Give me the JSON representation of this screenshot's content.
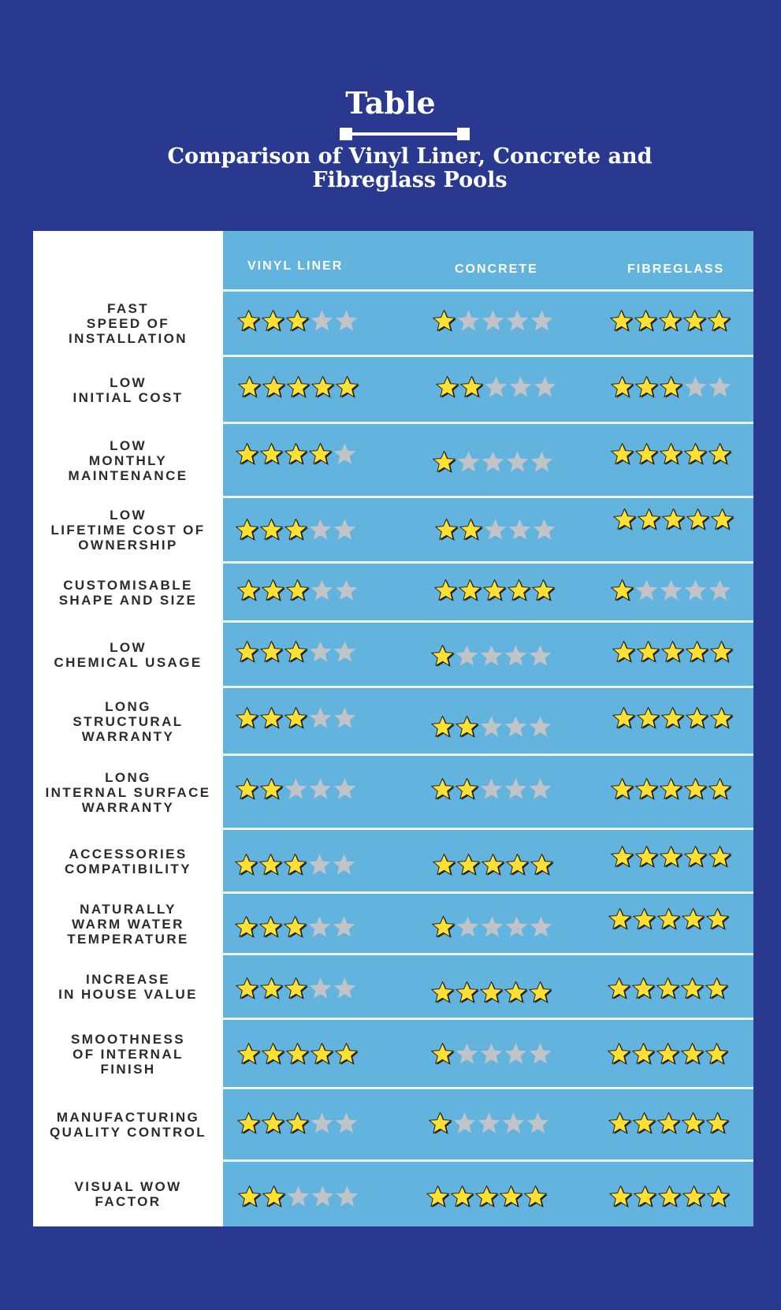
{
  "header": {
    "title": "Table",
    "subtitle_line1": "Comparison of Vinyl Liner, Concrete and",
    "subtitle_line2": "Fibreglass Pools"
  },
  "colors": {
    "background": "#2a3990",
    "table_fill": "#62b3dd",
    "label_fill": "#ffffff",
    "star_filled": "#ffe033",
    "star_empty": "#c0c4c9",
    "star_outline": "#222222"
  },
  "icons": {
    "filled": "star-filled-icon",
    "empty": "star-empty-icon",
    "divider": "bar-divider-icon"
  },
  "columns": [
    "VINYL LINER",
    "CONCRETE",
    "FIBREGLASS"
  ],
  "max_rating": 5,
  "rows": [
    {
      "lines": [
        "FAST",
        "SPEED OF",
        "INSTALLATION"
      ],
      "ratings": [
        3,
        1,
        5
      ]
    },
    {
      "lines": [
        "LOW",
        "INITIAL COST"
      ],
      "ratings": [
        5,
        2,
        3
      ]
    },
    {
      "lines": [
        "LOW",
        "MONTHLY",
        "MAINTENANCE"
      ],
      "ratings": [
        4,
        1,
        5
      ]
    },
    {
      "lines": [
        "LOW",
        "LIFETIME COST OF",
        "OWNERSHIP"
      ],
      "ratings": [
        3,
        2,
        5
      ]
    },
    {
      "lines": [
        "CUSTOMISABLE",
        "SHAPE AND SIZE"
      ],
      "ratings": [
        3,
        5,
        1
      ]
    },
    {
      "lines": [
        "LOW",
        "CHEMICAL USAGE"
      ],
      "ratings": [
        3,
        1,
        5
      ]
    },
    {
      "lines": [
        "LONG",
        "STRUCTURAL",
        "WARRANTY"
      ],
      "ratings": [
        3,
        2,
        5
      ]
    },
    {
      "lines": [
        "LONG",
        "INTERNAL SURFACE",
        "WARRANTY"
      ],
      "ratings": [
        2,
        2,
        5
      ]
    },
    {
      "lines": [
        "ACCESSORIES",
        "COMPATIBILITY"
      ],
      "ratings": [
        3,
        5,
        5
      ]
    },
    {
      "lines": [
        "NATURALLY",
        "WARM WATER",
        "TEMPERATURE"
      ],
      "ratings": [
        3,
        1,
        5
      ]
    },
    {
      "lines": [
        "INCREASE",
        "IN HOUSE VALUE"
      ],
      "ratings": [
        3,
        5,
        5
      ]
    },
    {
      "lines": [
        "SMOOTHNESS",
        "OF INTERNAL",
        "FINISH"
      ],
      "ratings": [
        5,
        1,
        5
      ]
    },
    {
      "lines": [
        "MANUFACTURING",
        "QUALITY CONTROL"
      ],
      "ratings": [
        3,
        1,
        5
      ]
    },
    {
      "lines": [
        "VISUAL WOW",
        "FACTOR"
      ],
      "ratings": [
        2,
        5,
        5
      ]
    }
  ]
}
